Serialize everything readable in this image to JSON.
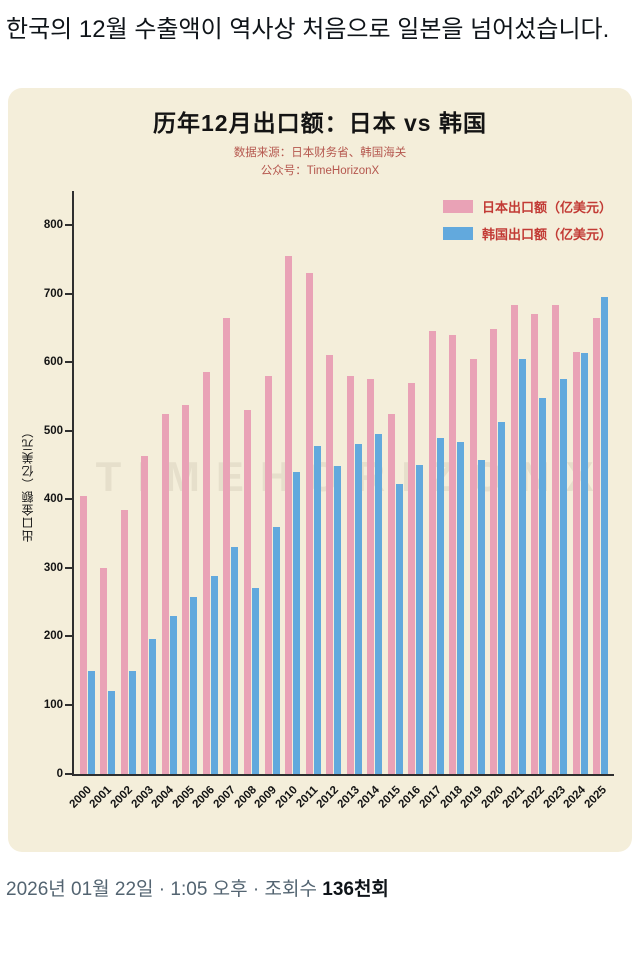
{
  "post": {
    "text": "한국의 12월 수출액이 역사상 처음으로 일본을 넘어섰습니다.",
    "meta": "2026년 01월 22일 · 1:05 오후 · 조회수",
    "views": "136천회"
  },
  "chart_data": {
    "type": "bar",
    "title": "历年12月出口额：日本 vs 韩国",
    "source_line": "数据来源：日本财务省、韩国海关",
    "account_line": "公众号：TimeHorizonX",
    "ylabel": "出口金额（亿美元）",
    "xlabel": "",
    "watermark": "TIMEHORIZONX",
    "ylim": [
      0,
      850
    ],
    "yticks": [
      0,
      100,
      200,
      300,
      400,
      500,
      600,
      700,
      800
    ],
    "grid": false,
    "legend_position": "top-right",
    "categories": [
      "2000",
      "2001",
      "2002",
      "2003",
      "2004",
      "2005",
      "2006",
      "2007",
      "2008",
      "2009",
      "2010",
      "2011",
      "2012",
      "2013",
      "2014",
      "2015",
      "2016",
      "2017",
      "2018",
      "2019",
      "2020",
      "2021",
      "2022",
      "2023",
      "2024",
      "2025"
    ],
    "series": [
      {
        "name": "日本出口额（亿美元）",
        "color": "#e9a2b6",
        "values": [
          405,
          300,
          385,
          463,
          525,
          537,
          585,
          665,
          530,
          580,
          755,
          730,
          610,
          580,
          575,
          525,
          570,
          645,
          640,
          605,
          648,
          683,
          670,
          683,
          615,
          665
        ]
      },
      {
        "name": "韩国出口额（亿美元）",
        "color": "#62a9dd",
        "values": [
          150,
          120,
          150,
          197,
          230,
          258,
          288,
          330,
          270,
          360,
          440,
          478,
          449,
          480,
          495,
          423,
          450,
          490,
          483,
          457,
          512,
          605,
          548,
          575,
          613,
          695
        ]
      }
    ]
  },
  "colors": {
    "page_bg": "#ffffff",
    "card_bg": "#f4eeda",
    "chart_title_text": "#141414",
    "subtitle_text": "#b5574e",
    "legend_text": "#c23b35",
    "axis": "#2f2f2f",
    "title_text": "#0f1419",
    "meta_text": "#536471",
    "views_text": "#0f1419",
    "bar_japan": "#e9a2b6",
    "bar_korea": "#62a9dd"
  }
}
